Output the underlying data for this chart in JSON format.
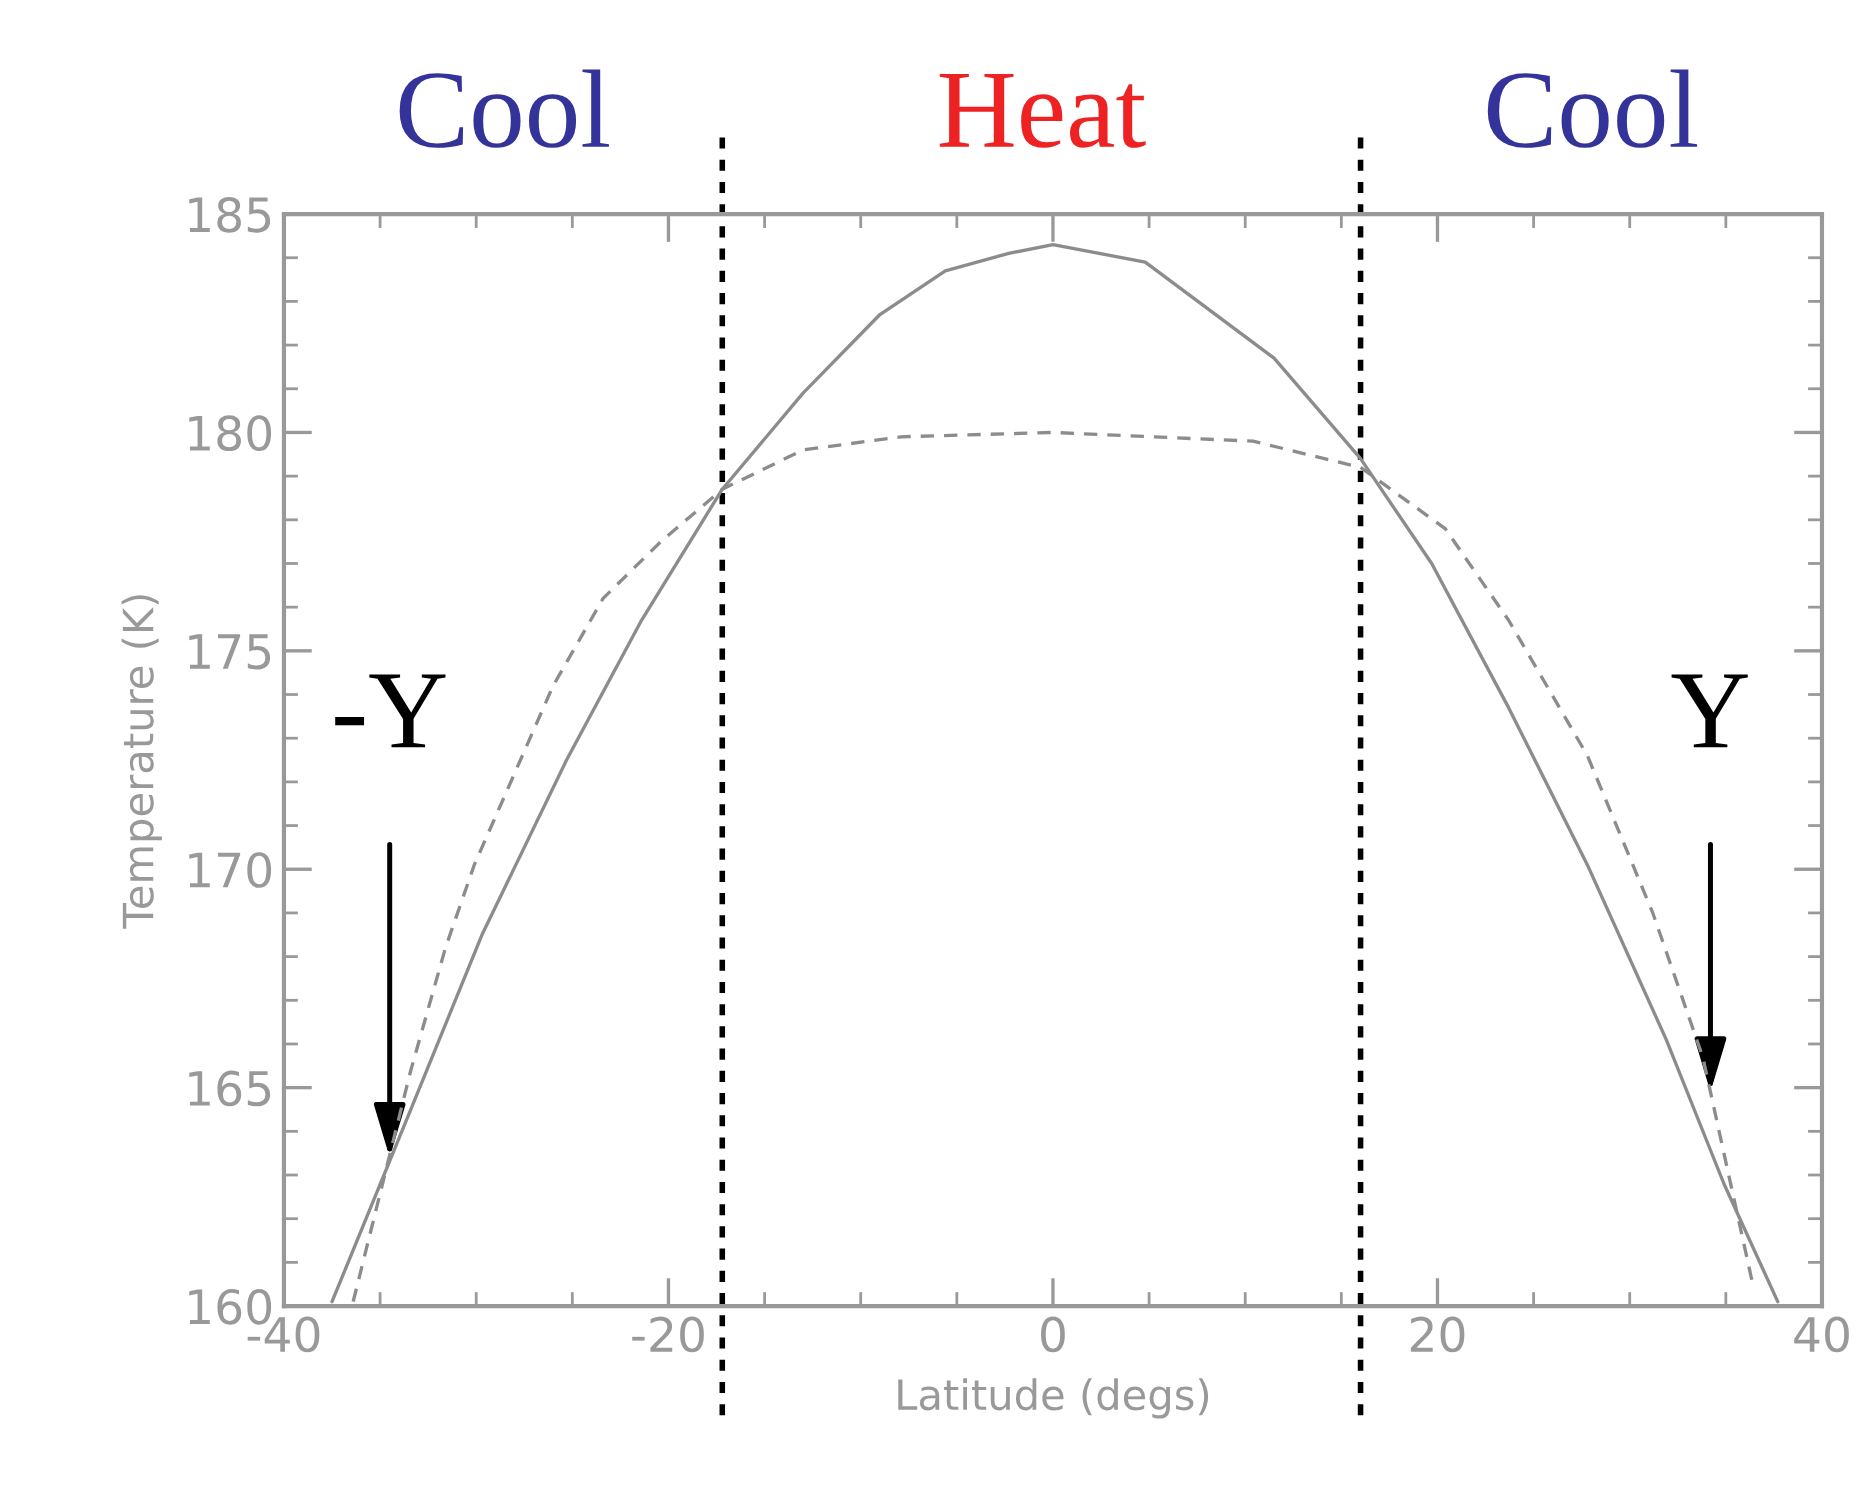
{
  "chart_data": {
    "type": "line",
    "xlabel": "Latitude (degs)",
    "ylabel": "Temperature (K)",
    "xlim": [
      -40,
      40
    ],
    "xticks": [
      -40,
      -20,
      0,
      20,
      40
    ],
    "ylim": [
      160,
      185
    ],
    "yticks": [
      160,
      165,
      170,
      175,
      180,
      185
    ],
    "grid": false,
    "series": [
      {
        "color": "#8c8c8c",
        "line_style": "solid",
        "x": [
          -37.5,
          -33.4,
          -29.7,
          -25.3,
          -21.4,
          -17.2,
          -13.0,
          -9.0,
          -5.6,
          -2.3,
          0,
          4.8,
          11.5,
          16.0,
          19.7,
          23.7,
          27.8,
          31.9,
          34.9,
          37.7
        ],
        "values": [
          160.1,
          164.5,
          168.5,
          172.5,
          175.7,
          178.7,
          180.9,
          182.7,
          183.7,
          184.1,
          184.3,
          183.9,
          181.7,
          179.4,
          177.0,
          173.7,
          170.1,
          166.1,
          162.8,
          160.1
        ]
      },
      {
        "color": "#8c8c8c",
        "line_style": "dashed",
        "x": [
          -36.4,
          -33.4,
          -31.6,
          -30.1,
          -28.3,
          -26.0,
          -23.4,
          -20.4,
          -17.2,
          -13.0,
          -7.9,
          0,
          10.4,
          16.0,
          20.4,
          23.7,
          27.8,
          31.2,
          33.8,
          36.4
        ],
        "values": [
          160.1,
          165.4,
          168.2,
          170.1,
          171.9,
          174.2,
          176.2,
          177.5,
          178.7,
          179.6,
          179.9,
          180.0,
          179.8,
          179.2,
          177.8,
          175.7,
          172.6,
          169.0,
          165.7,
          160.5
        ]
      }
    ],
    "ref_lines": [
      {
        "axis": "x",
        "value": -17.2,
        "color": "#000000",
        "line_style": "dotted"
      },
      {
        "axis": "x",
        "value": 16.0,
        "color": "#000000",
        "line_style": "dotted"
      }
    ],
    "annotations": [
      "Cool",
      "Heat",
      "Cool",
      {
        "text": "-Y",
        "x": -34.5,
        "y": 163.4
      },
      {
        "text": "Y",
        "x": 34.2,
        "y": 164.9
      }
    ]
  }
}
